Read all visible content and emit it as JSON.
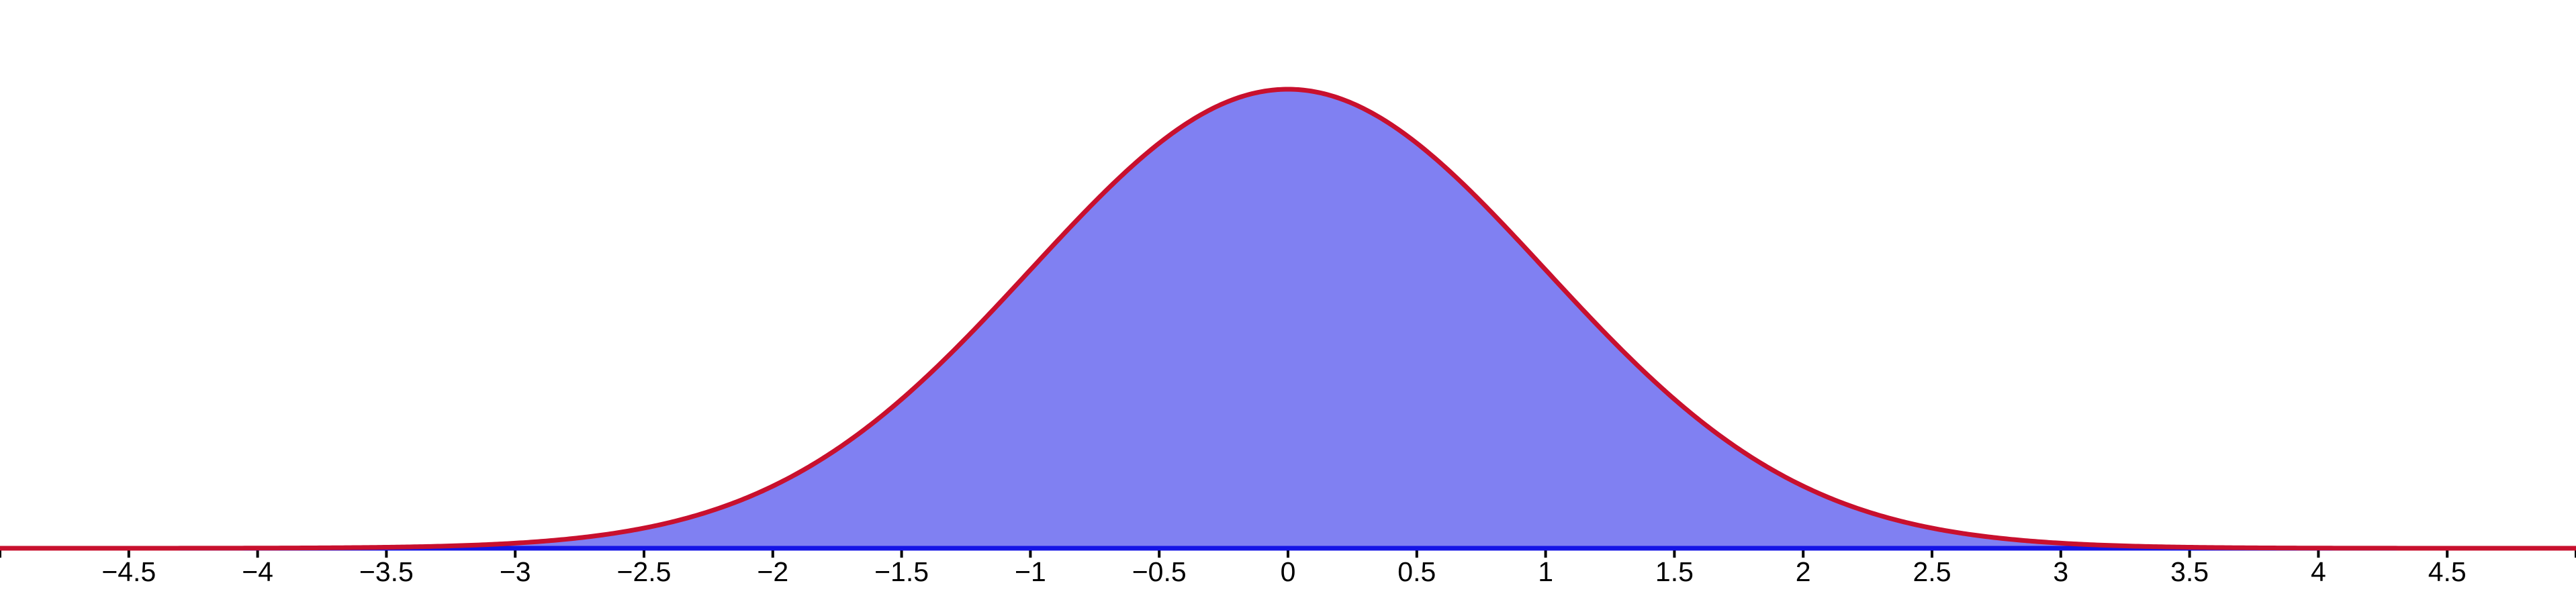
{
  "chart_data": {
    "type": "area",
    "title": "",
    "description": "Bell-shaped normal distribution curve (mean 0, sd 1) with the full area under the curve shaded; drawn on a horizontal x-axis with no visible y-axis",
    "curve": {
      "shape": "gaussian",
      "mean": 0,
      "sd": 1,
      "formula_relative": "y = exp(-x^2 / 2)"
    },
    "curve_points_relative": [
      [
        -4.0,
        0.0003
      ],
      [
        -3.5,
        0.0022
      ],
      [
        -3.0,
        0.0111
      ],
      [
        -2.5,
        0.0439
      ],
      [
        -2.0,
        0.1353
      ],
      [
        -1.5,
        0.3247
      ],
      [
        -1.0,
        0.6065
      ],
      [
        -0.5,
        0.8825
      ],
      [
        0.0,
        1.0
      ],
      [
        0.5,
        0.8825
      ],
      [
        1.0,
        0.6065
      ],
      [
        1.5,
        0.3247
      ],
      [
        2.0,
        0.1353
      ],
      [
        2.5,
        0.0439
      ],
      [
        3.0,
        0.0111
      ],
      [
        3.5,
        0.0022
      ],
      [
        4.0,
        0.0003
      ]
    ],
    "x_axis": {
      "range": [
        -5,
        5
      ],
      "tick_step": 0.5,
      "grid": false,
      "ticks": [
        {
          "value": -5.0,
          "label": ""
        },
        {
          "value": -4.5,
          "label": "−4.5"
        },
        {
          "value": -4.0,
          "label": "−4"
        },
        {
          "value": -3.5,
          "label": "−3.5"
        },
        {
          "value": -3.0,
          "label": "−3"
        },
        {
          "value": -2.5,
          "label": "−2.5"
        },
        {
          "value": -2.0,
          "label": "−2"
        },
        {
          "value": -1.5,
          "label": "−1.5"
        },
        {
          "value": -1.0,
          "label": "−1"
        },
        {
          "value": -0.5,
          "label": "−0.5"
        },
        {
          "value": 0.0,
          "label": "0"
        },
        {
          "value": 0.5,
          "label": "0.5"
        },
        {
          "value": 1.0,
          "label": "1"
        },
        {
          "value": 1.5,
          "label": "1.5"
        },
        {
          "value": 2.0,
          "label": "2"
        },
        {
          "value": 2.5,
          "label": "2.5"
        },
        {
          "value": 3.0,
          "label": "3"
        },
        {
          "value": 3.5,
          "label": "3.5"
        },
        {
          "value": 4.0,
          "label": "4"
        },
        {
          "value": 4.5,
          "label": "4.5"
        },
        {
          "value": 5.0,
          "label": ""
        }
      ]
    },
    "y_axis": {
      "visible": false
    },
    "legend": {
      "visible": false
    },
    "colors": {
      "curve_stroke": "#C8102E",
      "area_fill": "#8080F2",
      "axis_line": "#1414E6",
      "tick_mark": "#000000",
      "tick_label": "#000000",
      "background": "#FFFFFF"
    }
  }
}
